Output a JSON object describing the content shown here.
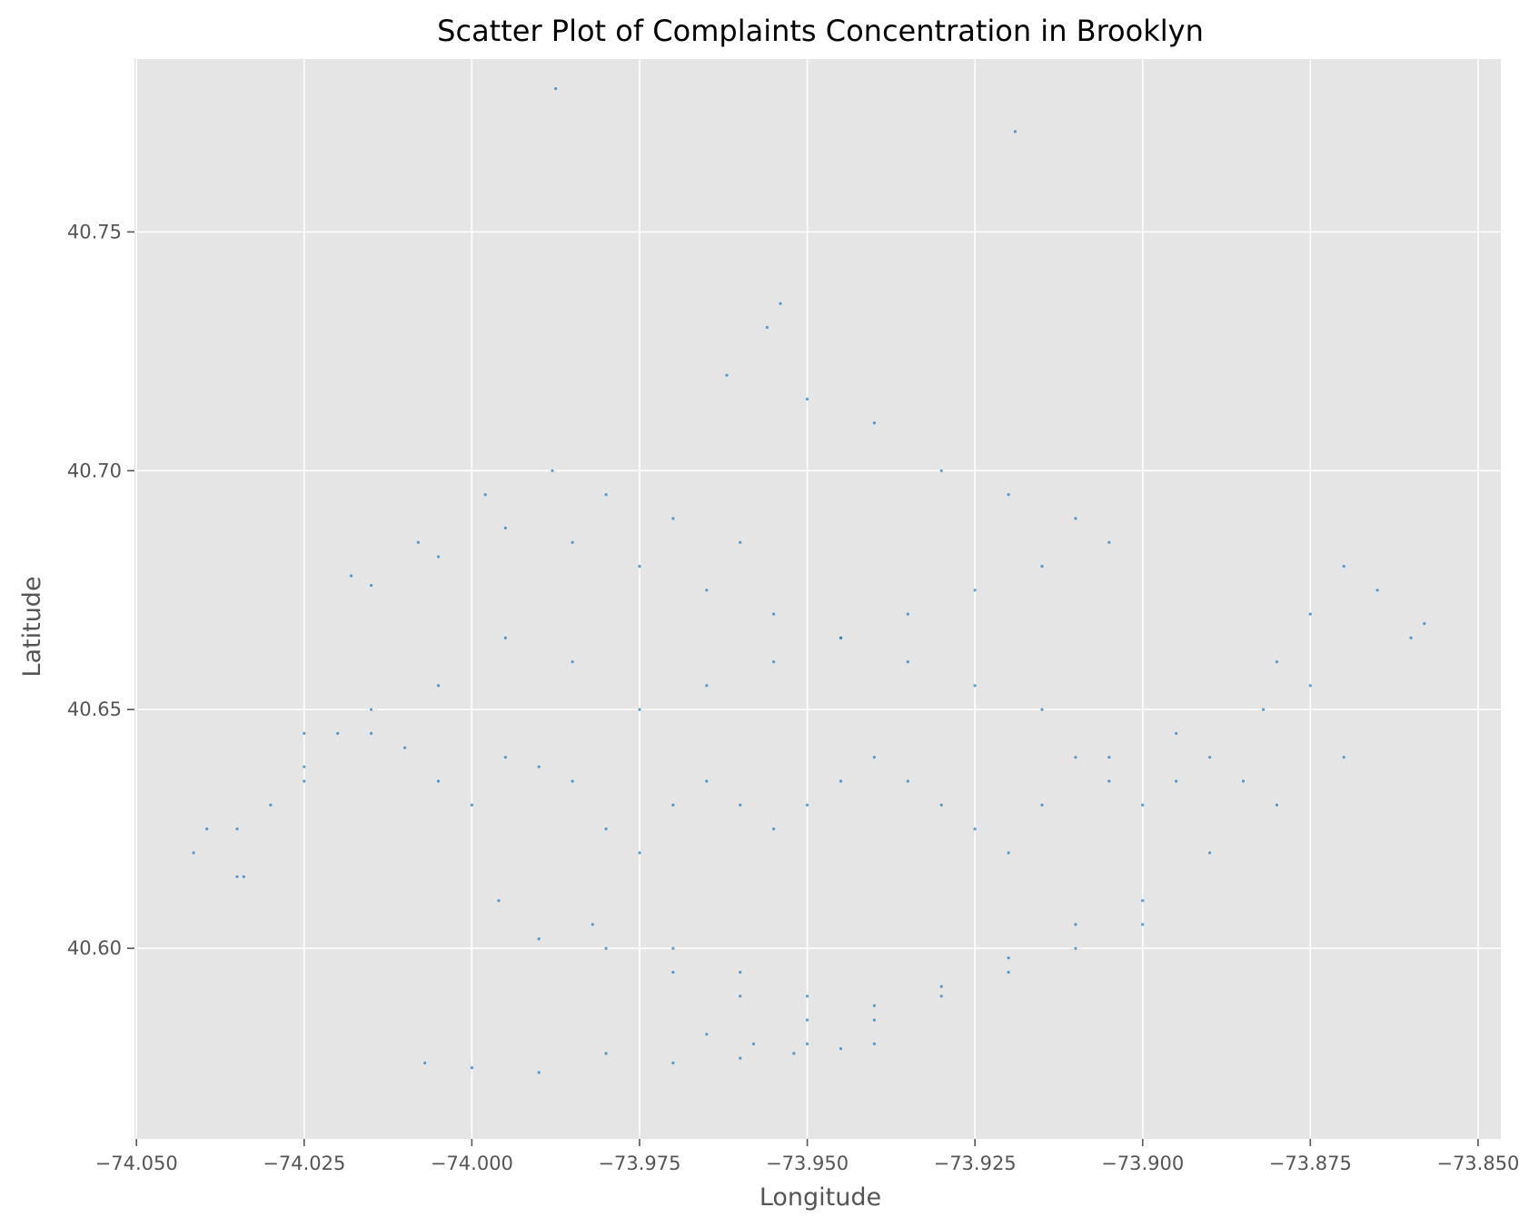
{
  "chart_data": {
    "type": "scatter",
    "title": "Scatter Plot of Complaints Concentration in Brooklyn",
    "xlabel": "Longitude",
    "ylabel": "Latitude",
    "xlim": [
      -74.0503,
      -73.8466
    ],
    "ylim": [
      40.5601,
      40.7862
    ],
    "xticks": [
      -74.05,
      -74.025,
      -74.0,
      -73.975,
      -73.95,
      -73.925,
      -73.9,
      -73.875,
      -73.85
    ],
    "xtick_labels": [
      "−74.050",
      "−74.025",
      "−74.000",
      "−73.975",
      "−73.950",
      "−73.925",
      "−73.900",
      "−73.875",
      "−73.850"
    ],
    "yticks": [
      40.6,
      40.65,
      40.7,
      40.75
    ],
    "ytick_labels": [
      "40.60",
      "40.65",
      "40.70",
      "40.75"
    ],
    "grid": true,
    "legend": "none",
    "series": [
      {
        "color": "#1f77b4",
        "x": [
          -73.9875,
          -73.919,
          -74.0395,
          -74.0415,
          -74.035,
          -74.03,
          -74.025,
          -74.02,
          -74.015,
          -74.01,
          -74.005,
          -74.0,
          -73.995,
          -73.99,
          -73.985,
          -73.98,
          -73.975,
          -73.97,
          -73.965,
          -73.96,
          -73.955,
          -73.95,
          -73.945,
          -73.94,
          -73.935,
          -73.93,
          -73.925,
          -73.92,
          -73.915,
          -73.91,
          -73.905,
          -73.9,
          -73.895,
          -73.89,
          -73.885,
          -73.88,
          -73.875,
          -73.87,
          -73.865,
          -73.86,
          -73.858,
          -74.018,
          -74.008,
          -73.998,
          -73.988,
          -73.98,
          -73.97,
          -73.96,
          -73.956,
          -73.954,
          -73.962,
          -73.95,
          -73.94,
          -73.93,
          -73.92,
          -73.91,
          -73.905,
          -73.915,
          -73.925,
          -73.935,
          -73.945,
          -73.955,
          -73.965,
          -73.975,
          -73.985,
          -73.995,
          -74.005,
          -74.015,
          -74.025,
          -74.035,
          -73.996,
          -73.982,
          -73.97,
          -73.96,
          -73.95,
          -73.94,
          -73.93,
          -73.92,
          -73.91,
          -73.9,
          -73.89,
          -73.88,
          -73.87,
          -73.882,
          -73.875,
          -73.895,
          -73.905,
          -73.915,
          -73.925,
          -73.935,
          -73.945,
          -73.955,
          -73.965,
          -73.975,
          -73.985,
          -73.995,
          -74.005,
          -74.015,
          -74.025,
          -74.034,
          -73.99,
          -73.98,
          -73.97,
          -73.96,
          -73.95,
          -73.94,
          -73.93,
          -73.92,
          -73.91,
          -73.9,
          -73.98,
          -73.97,
          -73.96,
          -73.95,
          -73.94,
          -73.965,
          -73.958,
          -73.952,
          -73.945,
          -73.99,
          -74.0,
          -74.007
        ],
        "y": [
          40.78,
          40.771,
          40.625,
          40.62,
          40.615,
          40.63,
          40.638,
          40.645,
          40.65,
          40.642,
          40.635,
          40.63,
          40.64,
          40.638,
          40.635,
          40.625,
          40.62,
          40.63,
          40.635,
          40.63,
          40.625,
          40.63,
          40.635,
          40.64,
          40.635,
          40.63,
          40.625,
          40.62,
          40.63,
          40.64,
          40.635,
          40.63,
          40.635,
          40.64,
          40.635,
          40.66,
          40.67,
          40.68,
          40.675,
          40.665,
          40.668,
          40.678,
          40.685,
          40.695,
          40.7,
          40.695,
          40.69,
          40.685,
          40.73,
          40.735,
          40.72,
          40.715,
          40.71,
          40.7,
          40.695,
          40.69,
          40.685,
          40.68,
          40.675,
          40.67,
          40.665,
          40.66,
          40.655,
          40.65,
          40.66,
          40.665,
          40.655,
          40.645,
          40.635,
          40.625,
          40.61,
          40.605,
          40.6,
          40.595,
          40.59,
          40.588,
          40.592,
          40.598,
          40.605,
          40.61,
          40.62,
          40.63,
          40.64,
          40.65,
          40.655,
          40.645,
          40.64,
          40.65,
          40.655,
          40.66,
          40.665,
          40.67,
          40.675,
          40.68,
          40.685,
          40.688,
          40.682,
          40.676,
          40.645,
          40.615,
          40.602,
          40.6,
          40.595,
          40.59,
          40.585,
          40.585,
          40.59,
          40.595,
          40.6,
          40.605,
          40.578,
          40.576,
          40.577,
          40.58,
          40.58,
          40.582,
          40.58,
          40.578,
          40.579,
          40.574,
          40.575,
          40.576
        ]
      }
    ]
  }
}
